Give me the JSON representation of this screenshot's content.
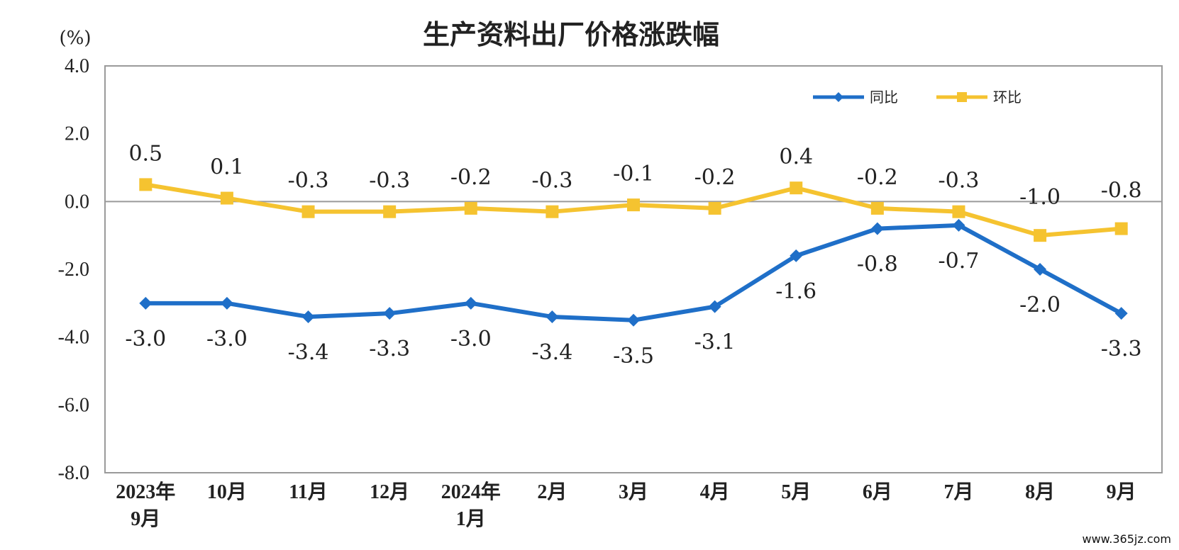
{
  "chart_data": {
    "type": "line",
    "title": "生产资料出厂价格涨跌幅",
    "ylabel": "(%)",
    "ylim": [
      -8,
      4
    ],
    "yticks": [
      "4.0",
      "2.0",
      "0.0",
      "-2.0",
      "-4.0",
      "-6.0",
      "-8.0"
    ],
    "ytick_values": [
      4,
      2,
      0,
      -2,
      -4,
      -6,
      -8
    ],
    "categories": [
      [
        "2023年",
        "9月"
      ],
      [
        "10月"
      ],
      [
        "11月"
      ],
      [
        "12月"
      ],
      [
        "2024年",
        "1月"
      ],
      [
        "2月"
      ],
      [
        "3月"
      ],
      [
        "4月"
      ],
      [
        "5月"
      ],
      [
        "6月"
      ],
      [
        "7月"
      ],
      [
        "8月"
      ],
      [
        "9月"
      ]
    ],
    "grid": false,
    "legend_position": "top-right",
    "series": [
      {
        "name": "同比",
        "color": "#1f6fc8",
        "marker": "diamond",
        "values": [
          -3.0,
          -3.0,
          -3.4,
          -3.3,
          -3.0,
          -3.4,
          -3.5,
          -3.1,
          -1.6,
          -0.8,
          -0.7,
          -2.0,
          -3.3
        ],
        "labels": [
          "-3.0",
          "-3.0",
          "-3.4",
          "-3.3",
          "-3.0",
          "-3.4",
          "-3.5",
          "-3.1",
          "-1.6",
          "-0.8",
          "-0.7",
          "-2.0",
          "-3.3"
        ]
      },
      {
        "name": "环比",
        "color": "#f5c330",
        "marker": "square",
        "values": [
          0.5,
          0.1,
          -0.3,
          -0.3,
          -0.2,
          -0.3,
          -0.1,
          -0.2,
          0.4,
          -0.2,
          -0.3,
          -1.0,
          -0.8
        ],
        "labels": [
          "0.5",
          "0.1",
          "-0.3",
          "-0.3",
          "-0.2",
          "-0.3",
          "-0.1",
          "-0.2",
          "0.4",
          "-0.2",
          "-0.3",
          "-1.0",
          "-0.8"
        ]
      }
    ]
  },
  "watermark": "www.365jz.com"
}
